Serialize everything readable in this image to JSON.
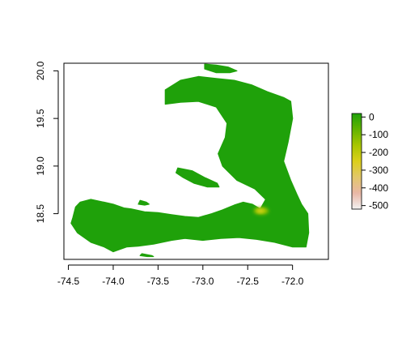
{
  "chart_data": {
    "type": "heatmap",
    "title": "",
    "xlabel": "",
    "ylabel": "",
    "xlim": [
      -74.55,
      -71.6
    ],
    "ylim": [
      18.02,
      20.08
    ],
    "x_ticks": [
      -74.5,
      -74.0,
      -73.5,
      -73.0,
      -72.5,
      -72.0
    ],
    "x_tick_labels": [
      "-74.5",
      "-74.0",
      "-73.5",
      "-73.0",
      "-72.5",
      "-72.0"
    ],
    "y_ticks": [
      18.5,
      19.0,
      19.5,
      20.0
    ],
    "y_tick_labels": [
      "18.5",
      "19.0",
      "19.5",
      "20.0"
    ],
    "colorbar": {
      "min": -520,
      "max": 20,
      "ticks": [
        0,
        -100,
        -200,
        -300,
        -400,
        -500
      ],
      "tick_labels": [
        "0",
        "-100",
        "-200",
        "-300",
        "-400",
        "-500"
      ],
      "colors": [
        "#f2f2f2",
        "#e9b7a6",
        "#e2c76a",
        "#dccf1b",
        "#a8c600",
        "#62b300",
        "#1fa10a"
      ]
    },
    "land_color": "#1fa10a",
    "hotspot": {
      "lon": -72.35,
      "lat": 18.53,
      "value": -150,
      "color": "#d9d51e"
    },
    "regions": [
      {
        "name": "main-island-haiti",
        "color": "#1fa10a",
        "outline": [
          [
            -74.45,
            18.46
          ],
          [
            -74.42,
            18.57
          ],
          [
            -74.37,
            18.62
          ],
          [
            -74.25,
            18.65
          ],
          [
            -74.1,
            18.62
          ],
          [
            -74.0,
            18.6
          ],
          [
            -73.88,
            18.56
          ],
          [
            -73.8,
            18.55
          ],
          [
            -73.65,
            18.52
          ],
          [
            -73.5,
            18.51
          ],
          [
            -73.35,
            18.49
          ],
          [
            -73.2,
            18.47
          ],
          [
            -73.05,
            18.46
          ],
          [
            -72.9,
            18.5
          ],
          [
            -72.78,
            18.54
          ],
          [
            -72.65,
            18.59
          ],
          [
            -72.55,
            18.62
          ],
          [
            -72.45,
            18.6
          ],
          [
            -72.36,
            18.55
          ],
          [
            -72.3,
            18.65
          ],
          [
            -72.42,
            18.76
          ],
          [
            -72.62,
            18.85
          ],
          [
            -72.78,
            19.0
          ],
          [
            -72.83,
            19.13
          ],
          [
            -72.75,
            19.3
          ],
          [
            -72.73,
            19.45
          ],
          [
            -72.85,
            19.62
          ],
          [
            -73.05,
            19.68
          ],
          [
            -73.25,
            19.67
          ],
          [
            -73.42,
            19.65
          ],
          [
            -73.42,
            19.8
          ],
          [
            -73.25,
            19.9
          ],
          [
            -73.05,
            19.94
          ],
          [
            -72.85,
            19.92
          ],
          [
            -72.65,
            19.9
          ],
          [
            -72.45,
            19.85
          ],
          [
            -72.28,
            19.78
          ],
          [
            -72.1,
            19.72
          ],
          [
            -72.02,
            19.68
          ],
          [
            -72.0,
            19.5
          ],
          [
            -72.05,
            19.25
          ],
          [
            -72.1,
            19.05
          ],
          [
            -72.02,
            18.85
          ],
          [
            -71.95,
            18.7
          ],
          [
            -71.9,
            18.6
          ],
          [
            -71.83,
            18.5
          ],
          [
            -71.82,
            18.3
          ],
          [
            -71.85,
            18.15
          ],
          [
            -72.0,
            18.15
          ],
          [
            -72.2,
            18.2
          ],
          [
            -72.4,
            18.23
          ],
          [
            -72.6,
            18.25
          ],
          [
            -72.8,
            18.24
          ],
          [
            -73.0,
            18.22
          ],
          [
            -73.2,
            18.24
          ],
          [
            -73.35,
            18.22
          ],
          [
            -73.55,
            18.18
          ],
          [
            -73.72,
            18.16
          ],
          [
            -73.85,
            18.15
          ],
          [
            -74.0,
            18.1
          ],
          [
            -74.1,
            18.15
          ],
          [
            -74.25,
            18.2
          ],
          [
            -74.4,
            18.3
          ],
          [
            -74.47,
            18.4
          ]
        ]
      },
      {
        "name": "ile-de-la-tortue",
        "color": "#1fa10a",
        "outline": [
          [
            -72.98,
            20.07
          ],
          [
            -72.85,
            20.06
          ],
          [
            -72.72,
            20.04
          ],
          [
            -72.62,
            20.0
          ],
          [
            -72.7,
            19.98
          ],
          [
            -72.85,
            19.98
          ],
          [
            -72.98,
            20.02
          ]
        ]
      },
      {
        "name": "ile-de-la-gonave",
        "color": "#1fa10a",
        "outline": [
          [
            -73.28,
            18.98
          ],
          [
            -73.12,
            18.95
          ],
          [
            -72.98,
            18.88
          ],
          [
            -72.84,
            18.82
          ],
          [
            -72.82,
            18.78
          ],
          [
            -72.95,
            18.78
          ],
          [
            -73.1,
            18.82
          ],
          [
            -73.22,
            18.88
          ],
          [
            -73.3,
            18.93
          ]
        ]
      },
      {
        "name": "grande-cayemite",
        "color": "#1fa10a",
        "outline": [
          [
            -73.7,
            18.64
          ],
          [
            -73.63,
            18.62
          ],
          [
            -73.6,
            18.6
          ],
          [
            -73.65,
            18.59
          ],
          [
            -73.72,
            18.6
          ]
        ]
      },
      {
        "name": "ile-a-vache",
        "color": "#1fa10a",
        "outline": [
          [
            -73.68,
            18.08
          ],
          [
            -73.57,
            18.06
          ],
          [
            -73.55,
            18.05
          ],
          [
            -73.62,
            18.05
          ],
          [
            -73.7,
            18.06
          ]
        ]
      }
    ]
  }
}
